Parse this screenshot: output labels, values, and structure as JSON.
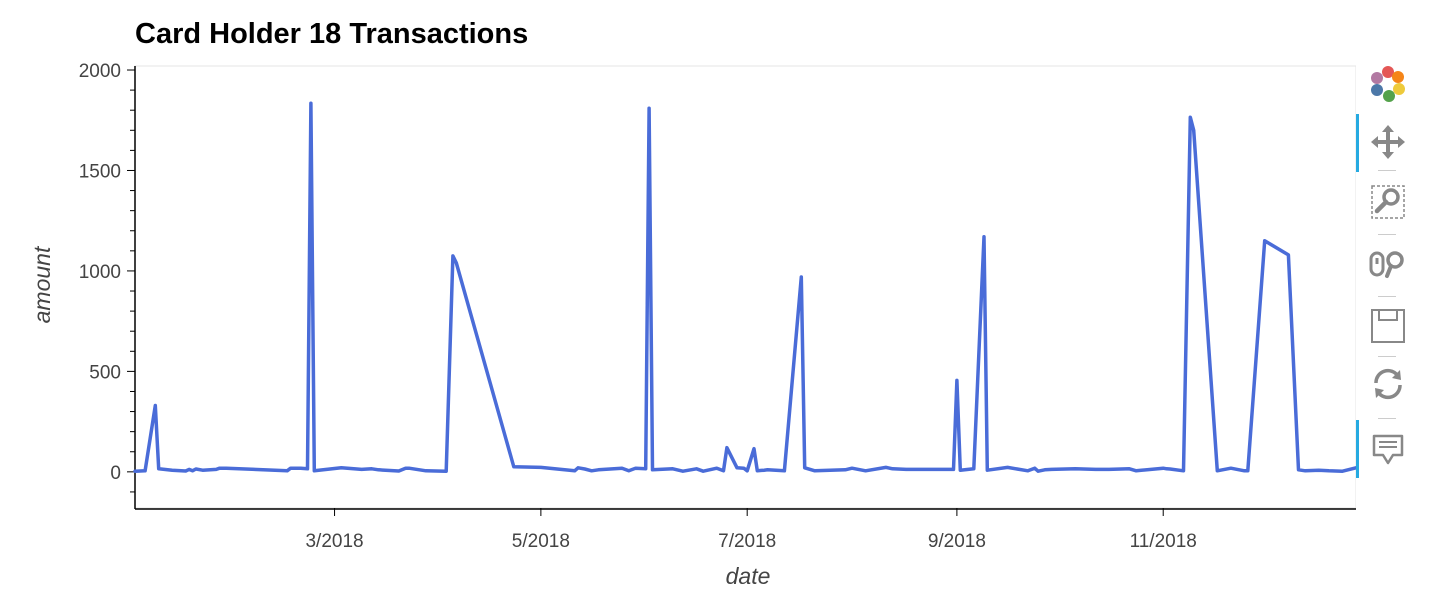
{
  "chart_data": {
    "type": "line",
    "title": "Card Holder 18 Transactions",
    "xlabel": "date",
    "ylabel": "amount",
    "xlim": [
      "2018-01-01",
      "2018-12-28"
    ],
    "ylim": [
      -180,
      2020
    ],
    "x_ticks": [
      "2018-03-01",
      "2018-05-01",
      "2018-07-01",
      "2018-09-01",
      "2018-11-01"
    ],
    "x_tick_labels": [
      "3/2018",
      "5/2018",
      "7/2018",
      "9/2018",
      "11/2018"
    ],
    "y_ticks": [
      0,
      500,
      1000,
      1500,
      2000
    ],
    "y_tick_labels": [
      "0",
      "500",
      "1000",
      "1500",
      "2000"
    ],
    "line_color": "#4a6cd8",
    "series": [
      {
        "x": [
          "2018-01-01",
          "2018-01-04",
          "2018-01-07",
          "2018-01-08",
          "2018-01-12",
          "2018-01-16",
          "2018-01-17",
          "2018-01-18",
          "2018-01-19",
          "2018-01-21",
          "2018-01-25",
          "2018-01-26",
          "2018-01-28",
          "2018-02-15",
          "2018-02-16",
          "2018-02-19",
          "2018-02-21",
          "2018-02-22",
          "2018-02-23",
          "2018-03-03",
          "2018-03-09",
          "2018-03-12",
          "2018-03-14",
          "2018-03-20",
          "2018-03-22",
          "2018-03-23",
          "2018-03-28",
          "2018-04-03",
          "2018-04-05",
          "2018-04-06",
          "2018-04-23",
          "2018-05-01",
          "2018-05-11",
          "2018-05-12",
          "2018-05-14",
          "2018-05-16",
          "2018-05-18",
          "2018-05-25",
          "2018-05-27",
          "2018-05-29",
          "2018-06-01",
          "2018-06-02",
          "2018-06-03",
          "2018-06-09",
          "2018-06-12",
          "2018-06-16",
          "2018-06-18",
          "2018-06-22",
          "2018-06-24",
          "2018-06-25",
          "2018-06-28",
          "2018-06-30",
          "2018-07-01",
          "2018-07-03",
          "2018-07-04",
          "2018-07-06",
          "2018-07-07",
          "2018-07-12",
          "2018-07-17",
          "2018-07-18",
          "2018-07-21",
          "2018-07-30",
          "2018-08-01",
          "2018-08-05",
          "2018-08-11",
          "2018-08-13",
          "2018-08-17",
          "2018-08-31",
          "2018-09-01",
          "2018-09-02",
          "2018-09-06",
          "2018-09-09",
          "2018-09-10",
          "2018-09-16",
          "2018-09-22",
          "2018-09-24",
          "2018-09-25",
          "2018-09-27",
          "2018-09-29",
          "2018-10-06",
          "2018-10-12",
          "2018-10-16",
          "2018-10-22",
          "2018-10-24",
          "2018-11-01",
          "2018-11-02",
          "2018-11-03",
          "2018-11-07",
          "2018-11-09",
          "2018-11-10",
          "2018-11-17",
          "2018-11-21",
          "2018-11-25",
          "2018-11-26",
          "2018-12-01",
          "2018-12-08",
          "2018-12-11",
          "2018-12-13",
          "2018-12-17",
          "2018-12-20",
          "2018-12-24",
          "2018-12-28"
        ],
        "values": [
          3,
          5,
          330,
          15,
          8,
          4,
          12,
          5,
          14,
          8,
          12,
          18,
          18,
          5,
          18,
          18,
          15,
          1835,
          5,
          20,
          12,
          15,
          10,
          4,
          18,
          18,
          5,
          3,
          1075,
          1040,
          25,
          22,
          5,
          20,
          14,
          5,
          10,
          18,
          5,
          18,
          15,
          1810,
          10,
          15,
          3,
          15,
          3,
          18,
          5,
          120,
          20,
          18,
          5,
          115,
          5,
          8,
          10,
          5,
          970,
          20,
          5,
          10,
          18,
          5,
          22,
          15,
          12,
          12,
          455,
          8,
          15,
          1170,
          8,
          22,
          5,
          18,
          3,
          10,
          12,
          15,
          12,
          12,
          15,
          5,
          18,
          15,
          14,
          5,
          1765,
          1700,
          5,
          18,
          5,
          5,
          1150,
          1080,
          10,
          5,
          8,
          5,
          3,
          20
        ]
      }
    ]
  },
  "toolbar": {
    "tools": [
      {
        "name": "bokeh-logo-icon"
      },
      {
        "name": "pan-tool-icon"
      },
      {
        "name": "box-zoom-tool-icon"
      },
      {
        "name": "wheel-zoom-tool-icon"
      },
      {
        "name": "save-tool-icon"
      },
      {
        "name": "reset-tool-icon"
      },
      {
        "name": "hover-tool-icon"
      }
    ]
  }
}
